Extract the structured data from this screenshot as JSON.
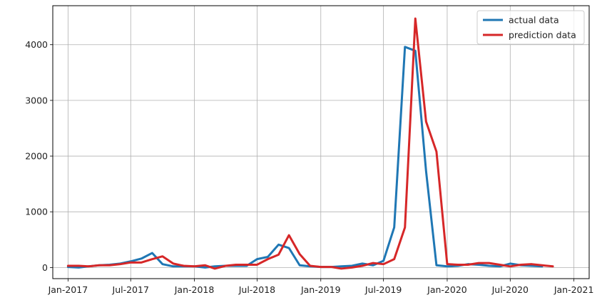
{
  "chart_data": {
    "type": "line",
    "title": "",
    "xlabel": "",
    "ylabel": "",
    "grid": true,
    "legend_position": "top-right",
    "x_start": "2017-01",
    "x_end": "2020-11",
    "xlim": [
      "2016-11-18",
      "2021-02-14"
    ],
    "ylim": [
      -200,
      4700
    ],
    "x_ticks": [
      {
        "date": "2017-01-01",
        "label": "Jan-2017"
      },
      {
        "date": "2017-07-01",
        "label": "Jul-2017"
      },
      {
        "date": "2018-01-01",
        "label": "Jan-2018"
      },
      {
        "date": "2018-07-01",
        "label": "Jul-2018"
      },
      {
        "date": "2019-01-01",
        "label": "Jan-2019"
      },
      {
        "date": "2019-07-01",
        "label": "Jul-2019"
      },
      {
        "date": "2020-01-01",
        "label": "Jan-2020"
      },
      {
        "date": "2020-07-01",
        "label": "Jul-2020"
      },
      {
        "date": "2021-01-01",
        "label": "Jan-2021"
      }
    ],
    "y_ticks": [
      0,
      1000,
      2000,
      3000,
      4000
    ],
    "series": [
      {
        "name": "actual data",
        "color": "#1f77b4",
        "values": [
          10,
          0,
          20,
          40,
          50,
          70,
          110,
          160,
          260,
          60,
          20,
          20,
          20,
          0,
          20,
          30,
          30,
          30,
          150,
          190,
          410,
          350,
          40,
          20,
          10,
          10,
          20,
          30,
          70,
          40,
          120,
          720,
          3960,
          3890,
          1730,
          40,
          20,
          30,
          60,
          50,
          30,
          20,
          70,
          40,
          30,
          20
        ]
      },
      {
        "name": "prediction data",
        "color": "#d62728",
        "values": [
          30,
          30,
          20,
          40,
          40,
          60,
          90,
          90,
          150,
          200,
          70,
          30,
          20,
          40,
          -20,
          30,
          50,
          50,
          50,
          150,
          230,
          580,
          240,
          30,
          10,
          10,
          -20,
          0,
          30,
          80,
          60,
          150,
          720,
          4470,
          2620,
          2080,
          60,
          50,
          50,
          80,
          80,
          50,
          20,
          50,
          60,
          40,
          20
        ]
      }
    ]
  }
}
